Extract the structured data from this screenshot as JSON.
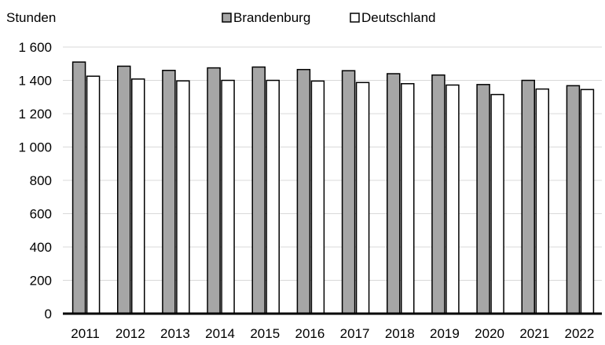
{
  "chart_data": {
    "type": "bar",
    "ylabel": "Stunden",
    "ylim": [
      0,
      1600
    ],
    "yticks": [
      0,
      200,
      400,
      600,
      800,
      1000,
      1200,
      1400,
      1600
    ],
    "ytick_labels": [
      "0",
      "200",
      "400",
      "600",
      "800",
      "1 000",
      "1 200",
      "1 400",
      "1 600"
    ],
    "grid": true,
    "legend_position": "top",
    "categories": [
      "2011",
      "2012",
      "2013",
      "2014",
      "2015",
      "2016",
      "2017",
      "2018",
      "2019",
      "2020",
      "2021",
      "2022"
    ],
    "series": [
      {
        "name": "Brandenburg",
        "color": "#a6a6a6",
        "values": [
          1510,
          1485,
          1460,
          1475,
          1480,
          1465,
          1458,
          1440,
          1432,
          1375,
          1400,
          1368
        ]
      },
      {
        "name": "Deutschland",
        "color": "#ffffff",
        "values": [
          1425,
          1408,
          1397,
          1400,
          1400,
          1396,
          1387,
          1380,
          1372,
          1315,
          1348,
          1345
        ]
      }
    ]
  }
}
